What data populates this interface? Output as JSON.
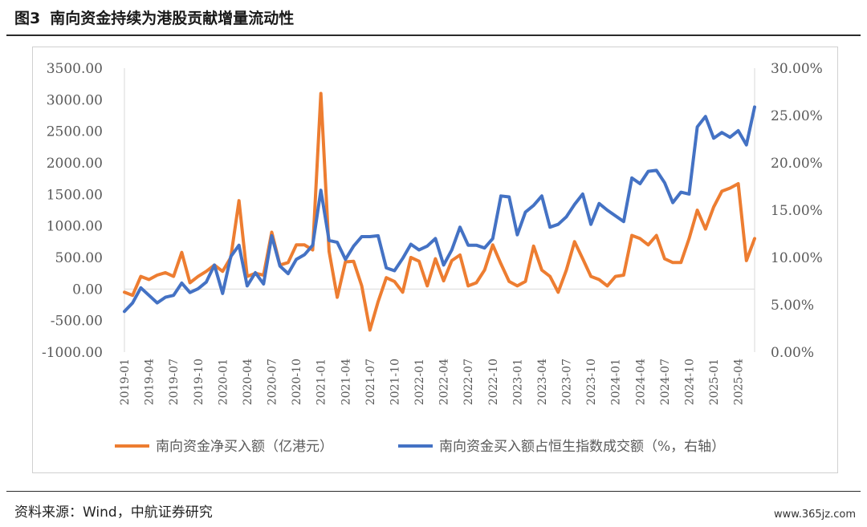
{
  "figure": {
    "number": "图3",
    "title": "南向资金持续为港股贡献增量流动性",
    "source": "资料来源：Wind，中航证券研究",
    "watermark": "www.365jz.com"
  },
  "colors": {
    "net_buy": "#ED7D31",
    "share": "#4472C4",
    "axis": "#d9d9d9",
    "text": "#595959"
  },
  "chart_data": {
    "type": "line",
    "x": [
      "2019-01",
      "2019-02",
      "2019-03",
      "2019-04",
      "2019-05",
      "2019-06",
      "2019-07",
      "2019-08",
      "2019-09",
      "2019-10",
      "2019-11",
      "2019-12",
      "2020-01",
      "2020-02",
      "2020-03",
      "2020-04",
      "2020-05",
      "2020-06",
      "2020-07",
      "2020-08",
      "2020-09",
      "2020-10",
      "2020-11",
      "2020-12",
      "2021-01",
      "2021-02",
      "2021-03",
      "2021-04",
      "2021-05",
      "2021-06",
      "2021-07",
      "2021-08",
      "2021-09",
      "2021-10",
      "2021-11",
      "2021-12",
      "2022-01",
      "2022-02",
      "2022-03",
      "2022-04",
      "2022-05",
      "2022-06",
      "2022-07",
      "2022-08",
      "2022-09",
      "2022-10",
      "2022-11",
      "2022-12",
      "2023-01",
      "2023-02",
      "2023-03",
      "2023-04",
      "2023-05",
      "2023-06",
      "2023-07",
      "2023-08",
      "2023-09",
      "2023-10",
      "2023-11",
      "2023-12",
      "2024-01",
      "2024-02",
      "2024-03",
      "2024-04",
      "2024-05",
      "2024-06",
      "2024-07",
      "2024-08",
      "2024-09",
      "2024-10",
      "2024-11",
      "2024-12",
      "2025-01",
      "2025-02",
      "2025-03",
      "2025-04",
      "2025-05",
      "2025-06"
    ],
    "x_tick_labels": [
      "2019-01",
      "2019-04",
      "2019-07",
      "2019-10",
      "2020-01",
      "2020-04",
      "2020-07",
      "2020-10",
      "2021-01",
      "2021-04",
      "2021-07",
      "2021-10",
      "2022-01",
      "2022-04",
      "2022-07",
      "2022-10",
      "2023-01",
      "2023-04",
      "2023-07",
      "2023-10",
      "2024-01",
      "2024-04",
      "2024-07",
      "2024-10",
      "2025-01",
      "2025-04"
    ],
    "y_left": {
      "min": -1000,
      "max": 3500,
      "ticks": [
        "-1000.00",
        "-500.00",
        "0.00",
        "500.00",
        "1000.00",
        "1500.00",
        "2000.00",
        "2500.00",
        "3000.00",
        "3500.00"
      ]
    },
    "y_right": {
      "min": 0,
      "max": 30,
      "ticks": [
        "0.00%",
        "5.00%",
        "10.00%",
        "15.00%",
        "20.00%",
        "25.00%",
        "30.00%"
      ]
    },
    "grid": false,
    "legend_position": "bottom",
    "series": [
      {
        "name": "南向资金净买入额（亿港元）",
        "axis": "left",
        "values": [
          -50,
          -100,
          200,
          150,
          220,
          260,
          200,
          580,
          100,
          200,
          280,
          380,
          280,
          500,
          1400,
          200,
          250,
          220,
          900,
          380,
          420,
          700,
          700,
          620,
          3100,
          600,
          -130,
          430,
          440,
          50,
          -650,
          -200,
          180,
          120,
          -50,
          500,
          440,
          50,
          480,
          130,
          450,
          540,
          50,
          100,
          300,
          700,
          400,
          120,
          50,
          120,
          680,
          300,
          200,
          -50,
          300,
          750,
          480,
          200,
          150,
          50,
          200,
          220,
          850,
          800,
          700,
          850,
          480,
          420,
          420,
          800,
          1250,
          950,
          1300,
          1550,
          1600,
          1670,
          450,
          800
        ]
      },
      {
        "name": "南向资金买入额占恒生指数成交额（%，右轴）",
        "axis": "right",
        "values": [
          4.3,
          5.2,
          6.8,
          6.0,
          5.2,
          5.8,
          6.0,
          7.3,
          6.3,
          6.7,
          7.4,
          9.2,
          6.2,
          10.1,
          11.3,
          7.0,
          8.4,
          7.2,
          12.3,
          9.1,
          8.3,
          9.8,
          10.3,
          11.3,
          17.1,
          11.8,
          11.6,
          9.8,
          11.2,
          12.2,
          12.2,
          12.3,
          8.9,
          8.6,
          9.9,
          11.4,
          10.8,
          11.2,
          12.0,
          9.2,
          10.8,
          13.2,
          11.3,
          11.3,
          11.0,
          12.0,
          16.5,
          16.4,
          12.4,
          14.8,
          15.5,
          16.5,
          13.2,
          13.5,
          14.3,
          15.6,
          16.7,
          13.5,
          15.7,
          15.0,
          14.4,
          13.8,
          18.4,
          17.8,
          19.1,
          19.2,
          17.9,
          15.8,
          16.9,
          16.7,
          23.8,
          24.9,
          22.6,
          23.2,
          22.7,
          23.4,
          21.9,
          25.9
        ]
      }
    ]
  }
}
